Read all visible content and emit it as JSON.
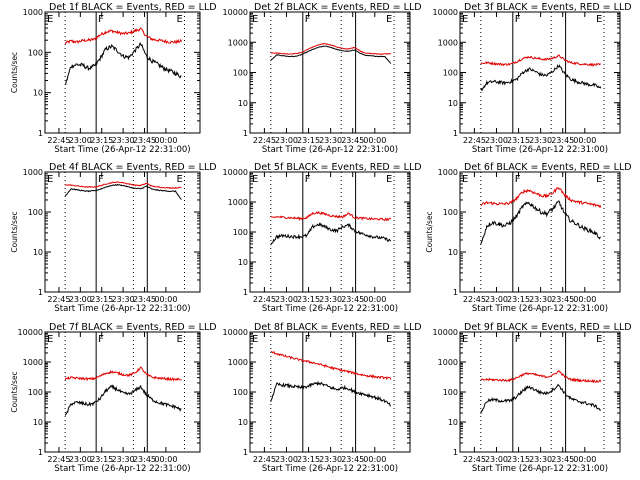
{
  "chart_data": [
    {
      "type": "line",
      "title": "Det 1f BLACK = Events, RED = LLD",
      "ylabel": "Counts/sec",
      "xlabel": "Start Time (26-Apr-12 22:31:00)",
      "yscale": "log",
      "ylim": [
        1,
        1000
      ],
      "y_ticks": [
        "1",
        "10",
        "100",
        "1000"
      ],
      "x_ticks": [
        "22:45",
        "23:00",
        "23:15",
        "23:30",
        "23:45",
        "00:00"
      ],
      "markers": {
        "left": "E",
        "mid": "F",
        "right": "E"
      },
      "profile": "flare",
      "series": [
        {
          "color": "#e00000",
          "values": [
            170,
            190,
            180,
            195,
            200,
            210,
            270,
            320,
            340,
            310,
            290,
            300,
            340,
            380,
            250,
            210,
            200,
            190,
            180,
            180,
            190
          ]
        },
        {
          "color": "#000000",
          "values": [
            15,
            45,
            50,
            48,
            40,
            45,
            70,
            120,
            140,
            110,
            80,
            75,
            110,
            160,
            80,
            60,
            50,
            40,
            35,
            30,
            25
          ]
        }
      ]
    },
    {
      "type": "line",
      "title": "Det 2f BLACK = Events, RED = LLD",
      "ylabel": "",
      "xlabel": "Start Time (26-Apr-12 22:31:00)",
      "yscale": "log",
      "ylim": [
        1,
        10000
      ],
      "y_ticks": [
        "1",
        "10",
        "100",
        "1000",
        "10000"
      ],
      "x_ticks": [
        "22:45",
        "23:00",
        "23:15",
        "23:30",
        "23:45",
        "00:00"
      ],
      "markers": {
        "left": "E",
        "mid": "F",
        "right": "E"
      },
      "profile": "smooth",
      "series": [
        {
          "color": "#e00000",
          "values": [
            450,
            440,
            420,
            410,
            420,
            450,
            560,
            700,
            820,
            900,
            820,
            700,
            620,
            600,
            680,
            500,
            430,
            420,
            410,
            410,
            420
          ]
        },
        {
          "color": "#000000",
          "values": [
            250,
            380,
            360,
            340,
            340,
            380,
            470,
            580,
            680,
            750,
            680,
            580,
            520,
            500,
            560,
            420,
            360,
            350,
            340,
            340,
            200
          ]
        }
      ]
    },
    {
      "type": "line",
      "title": "Det 3f BLACK = Events, RED = LLD",
      "ylabel": "",
      "xlabel": "Start Time (26-Apr-12 22:31:00)",
      "yscale": "log",
      "ylim": [
        1,
        10000
      ],
      "y_ticks": [
        "1",
        "10",
        "100",
        "1000",
        "10000"
      ],
      "x_ticks": [
        "22:45",
        "23:00",
        "23:15",
        "23:30",
        "23:45",
        "00:00"
      ],
      "markers": {
        "left": "E",
        "mid": "F",
        "right": "E"
      },
      "profile": "flare",
      "series": [
        {
          "color": "#e00000",
          "values": [
            200,
            210,
            200,
            190,
            185,
            190,
            230,
            290,
            330,
            300,
            280,
            270,
            300,
            360,
            260,
            210,
            200,
            190,
            185,
            180,
            180
          ]
        },
        {
          "color": "#000000",
          "values": [
            25,
            45,
            50,
            48,
            45,
            50,
            60,
            100,
            130,
            110,
            85,
            80,
            110,
            170,
            90,
            60,
            50,
            45,
            40,
            38,
            30
          ]
        }
      ]
    },
    {
      "type": "line",
      "title": "Det 4f BLACK = Events, RED = LLD",
      "ylabel": "Counts/sec",
      "xlabel": "Start Time (26-Apr-12 22:31:00)",
      "yscale": "log",
      "ylim": [
        1,
        1000
      ],
      "y_ticks": [
        "1",
        "10",
        "100",
        "1000"
      ],
      "x_ticks": [
        "22:45",
        "23:00",
        "23:15",
        "23:30",
        "23:45",
        "00:00"
      ],
      "markers": {
        "left": "E",
        "mid": "F",
        "right": "E"
      },
      "profile": "smooth",
      "series": [
        {
          "color": "#e00000",
          "values": [
            480,
            470,
            450,
            430,
            420,
            420,
            450,
            500,
            540,
            560,
            540,
            500,
            470,
            460,
            520,
            440,
            420,
            410,
            400,
            400,
            410
          ]
        },
        {
          "color": "#000000",
          "values": [
            250,
            380,
            360,
            340,
            330,
            340,
            370,
            420,
            460,
            480,
            460,
            420,
            390,
            380,
            440,
            370,
            350,
            340,
            330,
            330,
            200
          ]
        }
      ]
    },
    {
      "type": "line",
      "title": "Det 5f BLACK = Events, RED = LLD",
      "ylabel": "",
      "xlabel": "Start Time (26-Apr-12 22:31:00)",
      "yscale": "log",
      "ylim": [
        1,
        10000
      ],
      "y_ticks": [
        "1",
        "10",
        "100",
        "1000",
        "10000"
      ],
      "x_ticks": [
        "22:45",
        "23:00",
        "23:15",
        "23:30",
        "23:45",
        "00:00"
      ],
      "markers": {
        "left": "E",
        "mid": "F",
        "right": "E"
      },
      "profile": "flare",
      "series": [
        {
          "color": "#e00000",
          "values": [
            300,
            320,
            310,
            300,
            290,
            280,
            300,
            420,
            440,
            400,
            350,
            330,
            320,
            420,
            300,
            290,
            280,
            270,
            270,
            260,
            270
          ]
        },
        {
          "color": "#000000",
          "values": [
            40,
            70,
            75,
            72,
            70,
            70,
            75,
            150,
            180,
            150,
            120,
            110,
            150,
            170,
            110,
            90,
            80,
            70,
            65,
            60,
            50
          ]
        }
      ]
    },
    {
      "type": "line",
      "title": "Det 6f BLACK = Events, RED = LLD",
      "ylabel": "Counts/sec",
      "xlabel": "Start Time (26-Apr-12 22:31:00)",
      "yscale": "log",
      "ylim": [
        1,
        1000
      ],
      "y_ticks": [
        "1",
        "10",
        "100",
        "1000"
      ],
      "x_ticks": [
        "22:45",
        "23:00",
        "23:15",
        "23:30",
        "23:45",
        "00:00"
      ],
      "markers": {
        "left": "E",
        "mid": "F",
        "right": "E"
      },
      "profile": "flare",
      "series": [
        {
          "color": "#e00000",
          "values": [
            150,
            170,
            165,
            160,
            160,
            170,
            220,
            320,
            350,
            300,
            260,
            250,
            300,
            420,
            260,
            200,
            180,
            170,
            160,
            150,
            140
          ]
        },
        {
          "color": "#000000",
          "values": [
            15,
            45,
            55,
            50,
            45,
            55,
            80,
            140,
            170,
            130,
            100,
            90,
            120,
            180,
            90,
            60,
            50,
            40,
            35,
            30,
            22
          ]
        }
      ]
    },
    {
      "type": "line",
      "title": "Det 7f BLACK = Events, RED = LLD",
      "ylabel": "Counts/sec",
      "xlabel": "Start Time (26-Apr-12 22:31:00)",
      "yscale": "log",
      "ylim": [
        1,
        10000
      ],
      "y_ticks": [
        "1",
        "10",
        "100",
        "1000",
        "10000"
      ],
      "x_ticks": [
        "22:45",
        "23:00",
        "23:15",
        "23:30",
        "23:45",
        "00:00"
      ],
      "markers": {
        "left": "E",
        "mid": "F",
        "right": "E"
      },
      "profile": "flare",
      "series": [
        {
          "color": "#e00000",
          "values": [
            270,
            300,
            290,
            280,
            270,
            280,
            340,
            420,
            470,
            430,
            380,
            360,
            430,
            650,
            380,
            310,
            290,
            280,
            270,
            260,
            270
          ]
        },
        {
          "color": "#000000",
          "values": [
            15,
            40,
            45,
            42,
            38,
            42,
            60,
            110,
            150,
            120,
            90,
            85,
            110,
            150,
            80,
            55,
            45,
            40,
            35,
            32,
            25
          ]
        }
      ]
    },
    {
      "type": "line",
      "title": "Det 8f BLACK = Events, RED = LLD",
      "ylabel": "",
      "xlabel": "Start Time (26-Apr-12 22:31:00)",
      "yscale": "log",
      "ylim": [
        1,
        10000
      ],
      "y_ticks": [
        "1",
        "10",
        "100",
        "1000",
        "10000"
      ],
      "x_ticks": [
        "22:45",
        "23:00",
        "23:15",
        "23:30",
        "23:45",
        "00:00"
      ],
      "markers": {
        "left": "E",
        "mid": "F",
        "right": "E"
      },
      "profile": "decay",
      "series": [
        {
          "color": "#e00000",
          "values": [
            2200,
            1900,
            1650,
            1450,
            1300,
            1150,
            1050,
            950,
            850,
            750,
            650,
            580,
            520,
            470,
            420,
            380,
            350,
            330,
            310,
            300,
            280
          ]
        },
        {
          "color": "#000000",
          "values": [
            50,
            180,
            170,
            160,
            150,
            140,
            150,
            180,
            200,
            170,
            140,
            120,
            140,
            130,
            100,
            90,
            80,
            70,
            60,
            50,
            35
          ]
        }
      ]
    },
    {
      "type": "line",
      "title": "Det 9f BLACK = Events, RED = LLD",
      "ylabel": "",
      "xlabel": "Start Time (26-Apr-12 22:31:00)",
      "yscale": "log",
      "ylim": [
        1,
        10000
      ],
      "y_ticks": [
        "1",
        "10",
        "100",
        "1000",
        "10000"
      ],
      "x_ticks": [
        "22:45",
        "23:00",
        "23:15",
        "23:30",
        "23:45",
        "00:00"
      ],
      "markers": {
        "left": "E",
        "mid": "F",
        "right": "E"
      },
      "profile": "flare",
      "series": [
        {
          "color": "#e00000",
          "values": [
            250,
            260,
            255,
            250,
            245,
            250,
            300,
            380,
            420,
            380,
            340,
            320,
            360,
            500,
            320,
            260,
            250,
            240,
            235,
            230,
            230
          ]
        },
        {
          "color": "#000000",
          "values": [
            20,
            50,
            55,
            52,
            50,
            52,
            70,
            110,
            150,
            120,
            95,
            90,
            120,
            170,
            90,
            60,
            50,
            45,
            40,
            35,
            25
          ]
        }
      ]
    }
  ]
}
